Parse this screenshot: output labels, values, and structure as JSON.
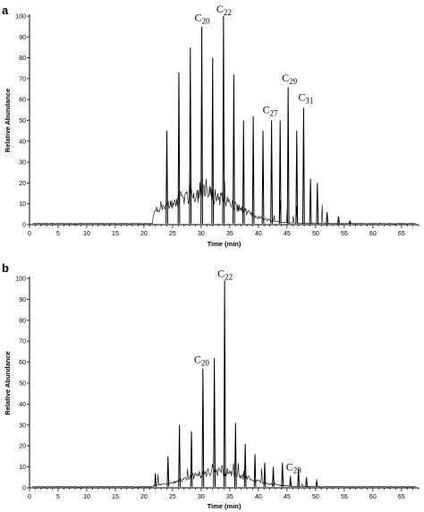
{
  "chart_data": [
    {
      "type": "line",
      "panel_label": "a",
      "xlabel": "Time (min)",
      "ylabel": "Relative Abundance",
      "xlim": [
        0,
        68
      ],
      "ylim": [
        0,
        100
      ],
      "xticks": [
        0,
        5,
        10,
        15,
        20,
        25,
        30,
        35,
        40,
        45,
        50,
        55,
        60,
        65
      ],
      "yticks": [
        0,
        10,
        20,
        30,
        40,
        50,
        60,
        70,
        80,
        90,
        100
      ],
      "grid": false,
      "peaks": [
        {
          "x": 24.0,
          "y": 45
        },
        {
          "x": 26.1,
          "y": 73
        },
        {
          "x": 28.1,
          "y": 85
        },
        {
          "x": 30.1,
          "y": 95
        },
        {
          "x": 32.0,
          "y": 80
        },
        {
          "x": 33.9,
          "y": 100
        },
        {
          "x": 35.7,
          "y": 72
        },
        {
          "x": 37.4,
          "y": 50
        },
        {
          "x": 39.1,
          "y": 52
        },
        {
          "x": 40.8,
          "y": 45
        },
        {
          "x": 42.3,
          "y": 50
        },
        {
          "x": 43.8,
          "y": 50
        },
        {
          "x": 45.2,
          "y": 66
        },
        {
          "x": 46.7,
          "y": 45
        },
        {
          "x": 47.9,
          "y": 56
        },
        {
          "x": 49.1,
          "y": 22
        },
        {
          "x": 50.3,
          "y": 20
        },
        {
          "x": 52.0,
          "y": 6
        },
        {
          "x": 54.0,
          "y": 4
        },
        {
          "x": 56.0,
          "y": 2
        }
      ],
      "annotations": [
        {
          "label": "C",
          "sub": "20",
          "x": 30.1,
          "y": 95
        },
        {
          "label": "C",
          "sub": "22",
          "x": 33.9,
          "y": 100
        },
        {
          "label": "C",
          "sub": "27",
          "x": 42.3,
          "y": 50
        },
        {
          "label": "C",
          "sub": "29",
          "x": 45.2,
          "y": 66
        },
        {
          "label": "C",
          "sub": "31",
          "x": 47.9,
          "y": 56
        }
      ],
      "hump": {
        "start": 21.5,
        "center": 30,
        "width": 8,
        "height": 10,
        "end": 52
      },
      "color": "#000000"
    },
    {
      "type": "line",
      "panel_label": "b",
      "xlabel": "Time (min)",
      "ylabel": "Relative Abundance",
      "xlim": [
        0,
        68
      ],
      "ylim": [
        0,
        100
      ],
      "xticks": [
        0,
        5,
        10,
        15,
        20,
        25,
        30,
        35,
        40,
        45,
        50,
        55,
        60,
        65
      ],
      "yticks": [
        0,
        10,
        20,
        30,
        40,
        50,
        60,
        70,
        80,
        90,
        100
      ],
      "grid": false,
      "peaks": [
        {
          "x": 22.0,
          "y": 7
        },
        {
          "x": 24.2,
          "y": 15
        },
        {
          "x": 26.2,
          "y": 30
        },
        {
          "x": 28.3,
          "y": 27
        },
        {
          "x": 30.3,
          "y": 57
        },
        {
          "x": 32.3,
          "y": 62
        },
        {
          "x": 34.1,
          "y": 99
        },
        {
          "x": 36.0,
          "y": 31
        },
        {
          "x": 37.7,
          "y": 21
        },
        {
          "x": 39.4,
          "y": 16
        },
        {
          "x": 41.1,
          "y": 12
        },
        {
          "x": 42.6,
          "y": 10
        },
        {
          "x": 44.2,
          "y": 12
        },
        {
          "x": 45.6,
          "y": 5
        },
        {
          "x": 47.0,
          "y": 9
        },
        {
          "x": 48.4,
          "y": 5
        },
        {
          "x": 50.2,
          "y": 3
        }
      ],
      "annotations": [
        {
          "label": "C",
          "sub": "20",
          "x": 30.3,
          "y": 57
        },
        {
          "label": "C",
          "sub": "22",
          "x": 34.1,
          "y": 99
        },
        {
          "label": "C",
          "sub": "29",
          "x": 45.6,
          "y": 5
        }
      ],
      "hump": {
        "start": 21.5,
        "center": 33,
        "width": 7,
        "height": 5,
        "end": 52
      },
      "color": "#000000"
    }
  ]
}
